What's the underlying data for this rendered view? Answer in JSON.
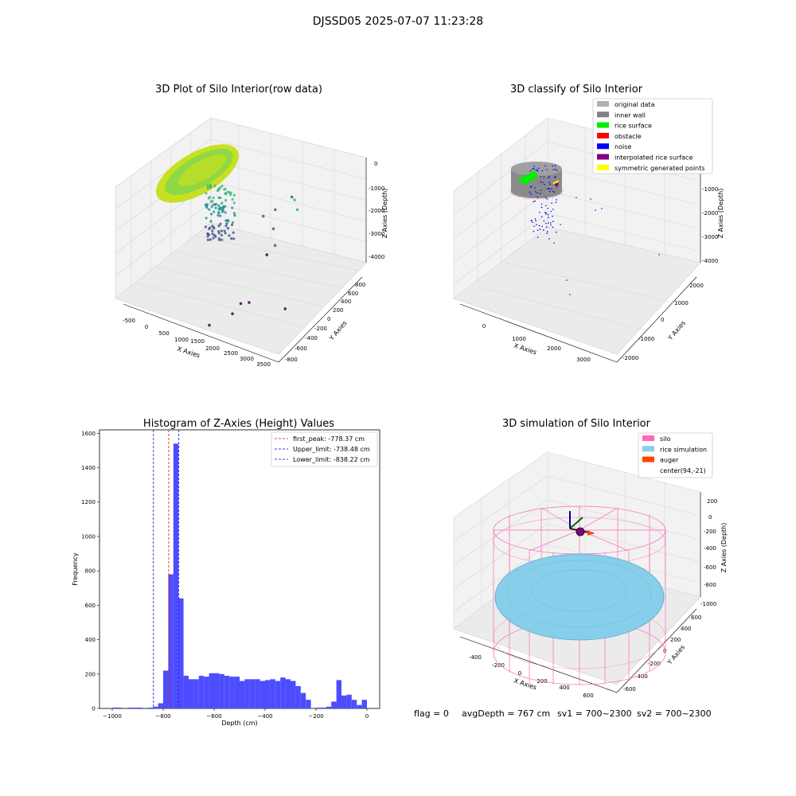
{
  "figure_title": "DJSSD05 2025-07-07 11:23:28",
  "status_line": {
    "flag": "flag = 0",
    "avg_depth": "avgDepth = 767 cm",
    "sv1": "sv1 = 700~2300",
    "sv2": "sv2 = 700~2300"
  },
  "chart_data": [
    {
      "type": "scatter",
      "title": "3D Plot of Silo Interior(row data)",
      "xlabel": "X Axies",
      "ylabel": "Y Axies",
      "zlabel": "Z Axies (Depth)",
      "x_ticks": [
        "-500",
        "0",
        "500",
        "1000",
        "1500",
        "2000",
        "2500",
        "3000",
        "3500"
      ],
      "y_ticks": [
        "-800",
        "-600",
        "-400",
        "-200",
        "0",
        "200",
        "400",
        "600",
        "800"
      ],
      "z_ticks": [
        "0",
        "-1000",
        "-2000",
        "-3000",
        "-4000"
      ],
      "xlim": [
        -600,
        3600
      ],
      "ylim": [
        -900,
        900
      ],
      "zlim": [
        -4700,
        200
      ],
      "colors": {
        "surface": "#b5de2b",
        "mid": "#35b779",
        "low": "#31688e",
        "deep": "#440154"
      },
      "points": [
        [
          2400,
          400,
          -1000
        ],
        [
          2600,
          300,
          -1100
        ],
        [
          2200,
          500,
          -1200
        ],
        [
          2500,
          -100,
          -1900
        ],
        [
          3400,
          -600,
          -3100
        ],
        [
          1500,
          700,
          -2600
        ],
        [
          1300,
          600,
          -2800
        ],
        [
          1700,
          500,
          -2900
        ],
        [
          1900,
          200,
          -3300
        ],
        [
          2200,
          -600,
          -3600
        ],
        [
          2100,
          -700,
          -3900
        ],
        [
          2300,
          -500,
          -3700
        ],
        [
          1600,
          -800,
          -4500
        ]
      ]
    },
    {
      "type": "scatter",
      "title": "3D classify of Silo Interior",
      "xlabel": "X Axies",
      "ylabel": "Y Axies",
      "zlabel": "Z Axies (Depth)",
      "x_ticks": [
        "0",
        "1000",
        "2000",
        "3000"
      ],
      "y_ticks": [
        "-2000",
        "-1000",
        "0",
        "1000",
        "2000"
      ],
      "z_ticks": [
        "0",
        "-1000",
        "-2000",
        "-3000",
        "-4000"
      ],
      "legend_position": "top-right",
      "legend": [
        {
          "label": "original data",
          "color": "#b0b0b0"
        },
        {
          "label": "inner wall",
          "color": "#808080"
        },
        {
          "label": "rice surface",
          "color": "#00ee00"
        },
        {
          "label": "obstacle",
          "color": "#ff0000"
        },
        {
          "label": "noise",
          "color": "#0000ff"
        },
        {
          "label": "interpolated rice surface",
          "color": "#800080"
        },
        {
          "label": "symmetric generated points",
          "color": "#ffff00"
        }
      ]
    },
    {
      "type": "bar",
      "title": "Histogram of Z-Axies (Height) Values",
      "xlabel": "Depth (cm)",
      "ylabel": "Frequency",
      "xlim": [
        -1050,
        50
      ],
      "ylim": [
        0,
        1620
      ],
      "x_ticks": [
        -1000,
        -800,
        -600,
        -400,
        -200,
        0
      ],
      "y_ticks": [
        0,
        200,
        400,
        600,
        800,
        1000,
        1200,
        1400,
        1600
      ],
      "bar_color": "#4d4dff",
      "bin_start": -1000,
      "bin_width": 20,
      "values": [
        5,
        5,
        0,
        5,
        5,
        5,
        0,
        5,
        10,
        30,
        220,
        780,
        1540,
        640,
        190,
        170,
        170,
        190,
        185,
        205,
        205,
        200,
        190,
        185,
        185,
        160,
        170,
        170,
        170,
        160,
        165,
        170,
        160,
        180,
        170,
        160,
        130,
        90,
        50,
        0,
        5,
        5,
        10,
        40,
        165,
        75,
        80,
        50,
        20,
        50
      ],
      "legend_position": "top-right",
      "lines": [
        {
          "label": "first_peak: -778.37 cm",
          "value": -778.37,
          "color": "#ff0000"
        },
        {
          "label": "Upper_limit: -738.48 cm",
          "value": -738.48,
          "color": "#0000ff"
        },
        {
          "label": "Lower_limit: -838.22 cm",
          "value": -838.22,
          "color": "#0000ff"
        }
      ]
    },
    {
      "type": "scatter",
      "title": "3D simulation of Silo Interior",
      "xlabel": "X Axies",
      "ylabel": "Y Axies",
      "zlabel": "Z Axies (Depth)",
      "x_ticks": [
        "-400",
        "-200",
        "0",
        "200",
        "400",
        "600"
      ],
      "y_ticks": [
        "-600",
        "-400",
        "-200",
        "0",
        "200",
        "400",
        "600"
      ],
      "z_ticks": [
        "200",
        "0",
        "-200",
        "-400",
        "-600",
        "-800",
        "-1000"
      ],
      "legend_position": "top-right",
      "legend": [
        {
          "label": "silo",
          "color": "#ff69b4"
        },
        {
          "label": "rice simulation",
          "color": "#87ceeb"
        },
        {
          "label": "auger",
          "color": "#ff4500"
        },
        {
          "label": "center(94,-21)",
          "color": "#ffffff"
        }
      ]
    }
  ]
}
